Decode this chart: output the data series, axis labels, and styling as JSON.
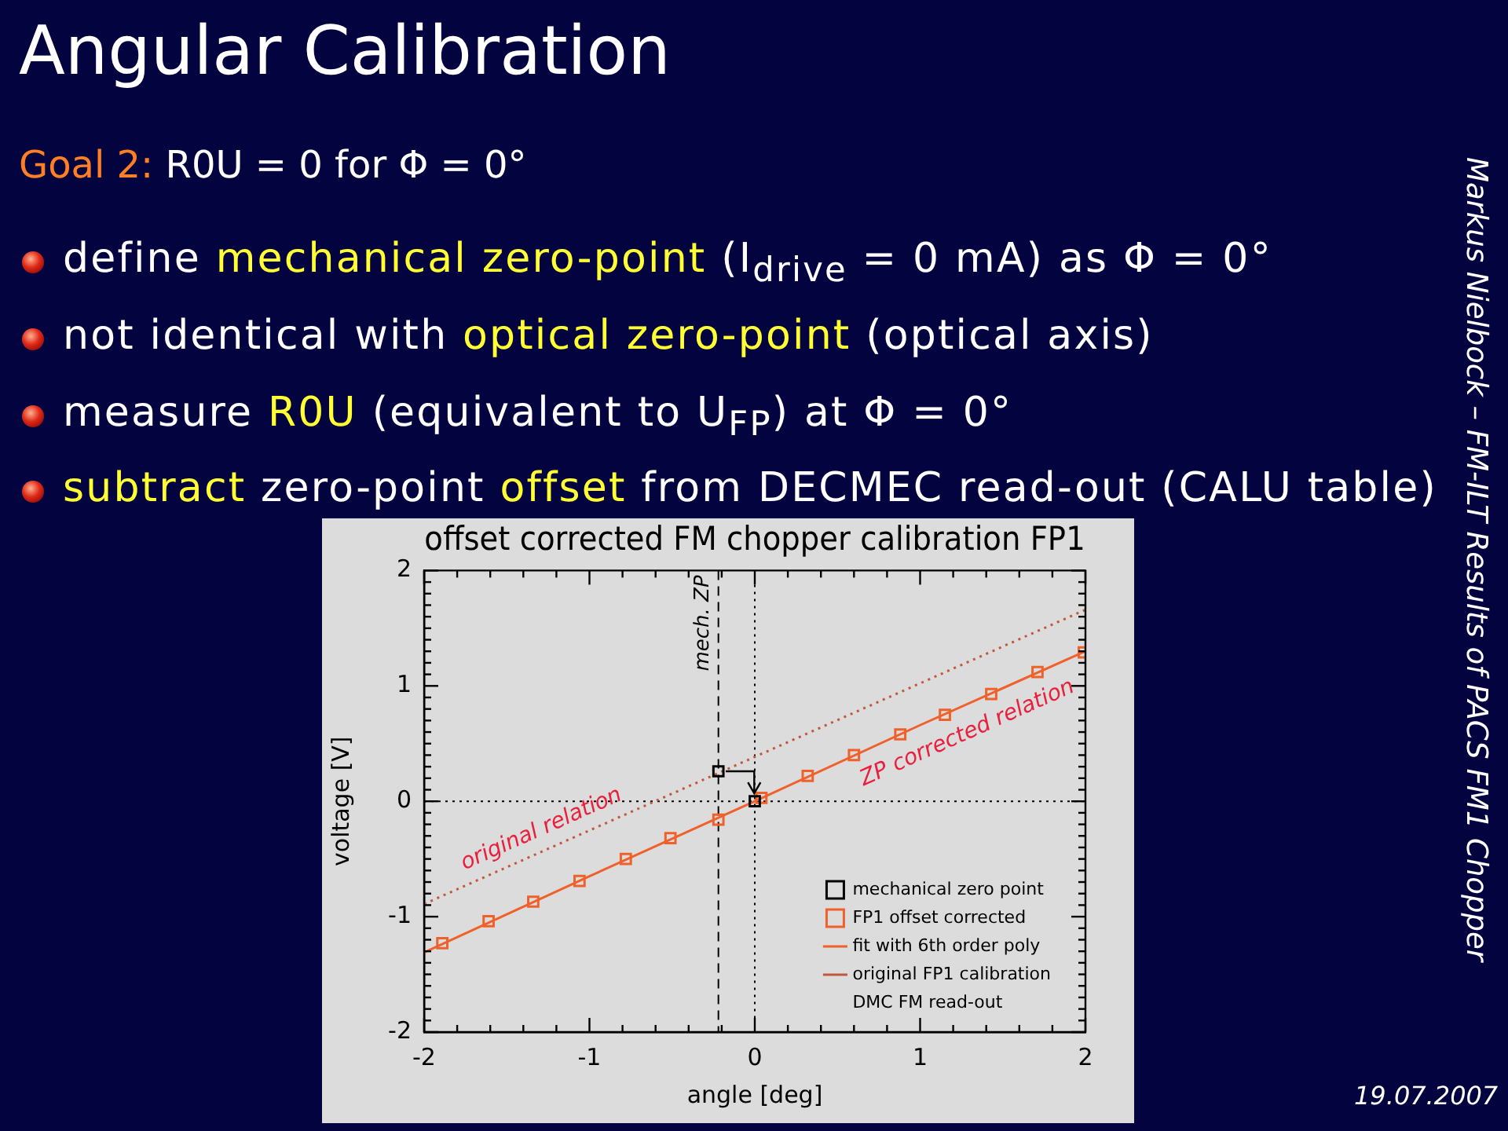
{
  "chart_data": {
    "type": "scatter",
    "title": "offset corrected FM chopper calibration FP1",
    "xlabel": "angle [deg]",
    "ylabel": "voltage [V]",
    "xlim": [
      -2,
      2
    ],
    "xticks": [
      -2,
      {
        "value": -1.8,
        "label": null
      },
      {
        "value": -1.6,
        "label": null
      },
      {
        "value": -1.4,
        "label": null
      },
      {
        "value": -1.2,
        "label": null
      },
      -1,
      {
        "value": -0.8,
        "label": null
      },
      {
        "value": -0.6,
        "label": null
      },
      {
        "value": -0.4,
        "label": null
      },
      {
        "value": -0.2,
        "label": null
      },
      0,
      {
        "value": 0.2,
        "label": null
      },
      {
        "value": 0.4,
        "label": null
      },
      {
        "value": 0.6,
        "label": null
      },
      {
        "value": 0.8,
        "label": null
      },
      1,
      {
        "value": 1.2,
        "label": null
      },
      {
        "value": 1.4,
        "label": null
      },
      {
        "value": 1.6,
        "label": null
      },
      {
        "value": 1.8,
        "label": null
      },
      2
    ],
    "ylim": [
      -2,
      2
    ],
    "yticks": [
      -2,
      {
        "value": -1.9,
        "label": null
      },
      {
        "value": -1.8,
        "label": null
      },
      {
        "value": -1.7,
        "label": null
      },
      {
        "value": -1.6,
        "label": null
      },
      {
        "value": -1.5,
        "label": null
      },
      {
        "value": -1.4,
        "label": null
      },
      {
        "value": -1.3,
        "label": null
      },
      {
        "value": -1.2,
        "label": null
      },
      {
        "value": -1.1,
        "label": null
      },
      -1,
      {
        "value": -0.9,
        "label": null
      },
      {
        "value": -0.8,
        "label": null
      },
      {
        "value": -0.7,
        "label": null
      },
      {
        "value": -0.6,
        "label": null
      },
      {
        "value": -0.5,
        "label": null
      },
      {
        "value": -0.4,
        "label": null
      },
      {
        "value": -0.3,
        "label": null
      },
      {
        "value": -0.2,
        "label": null
      },
      {
        "value": -0.1,
        "label": null
      },
      0,
      {
        "value": 0.1,
        "label": null
      },
      {
        "value": 0.2,
        "label": null
      },
      {
        "value": 0.3,
        "label": null
      },
      {
        "value": 0.4,
        "label": null
      },
      {
        "value": 0.5,
        "label": null
      },
      {
        "value": 0.6,
        "label": null
      },
      {
        "value": 0.7,
        "label": null
      },
      {
        "value": 0.8,
        "label": null
      },
      {
        "value": 0.9,
        "label": null
      },
      1,
      {
        "value": 1.1,
        "label": null
      },
      {
        "value": 1.2,
        "label": null
      },
      {
        "value": 1.3,
        "label": null
      },
      {
        "value": 1.4,
        "label": null
      },
      {
        "value": 1.5,
        "label": null
      },
      {
        "value": 1.6,
        "label": null
      },
      {
        "value": 1.7,
        "label": null
      },
      {
        "value": 1.8,
        "label": null
      },
      {
        "value": 1.9,
        "label": null
      },
      2
    ],
    "legend": "bottom right",
    "series": [
      {
        "name": "mechanical zero point",
        "color": "#000000",
        "marker": "square",
        "x": [
          -0.22,
          0
        ],
        "values": [
          0.26,
          0
        ]
      },
      {
        "name": "FP1 offset corrected",
        "color": "#f0602a",
        "marker": "square",
        "x": [
          -1.89,
          -1.61,
          -1.34,
          -1.06,
          -0.78,
          -0.51,
          -0.22,
          0.04,
          0.32,
          0.6,
          0.88,
          1.15,
          1.43,
          1.71,
          1.99
        ],
        "values": [
          -1.23,
          -1.04,
          -0.87,
          -0.69,
          -0.5,
          -0.32,
          -0.16,
          0.03,
          0.22,
          0.4,
          0.58,
          0.75,
          0.93,
          1.12,
          1.29
        ]
      },
      {
        "name": "fit with 6th order poly",
        "type": "line",
        "color": "#f0602a",
        "marker": "none",
        "line_style": "solid",
        "x": [
          -2,
          -1,
          0,
          1,
          2
        ],
        "values": [
          -1.31,
          -0.65,
          0,
          0.66,
          1.3
        ]
      },
      {
        "name": "original FP1 calibration",
        "type": "line",
        "color": "#c0583a",
        "marker": "none",
        "line_style": "dotted",
        "x": [
          -2,
          2
        ],
        "values": [
          -0.89,
          1.66
        ]
      }
    ],
    "ref_lines": [
      {
        "axis": "x",
        "value": -0.22,
        "label": "mech. ZP",
        "line_style": "dashed",
        "color": "#000000"
      },
      {
        "axis": "x",
        "value": 0,
        "line_style": "dotted",
        "color": "#000000"
      },
      {
        "axis": "y",
        "value": 0,
        "line_style": "dotted",
        "color": "#000000"
      }
    ],
    "annotations": [
      "Angular Calibration",
      "Goal 2:",
      "R0U = 0 for Φ = 0°",
      "define",
      "mechanical zero-point",
      "(I$_{drive}$ = 0 mA) as Φ = 0°",
      "not identical with",
      "optical zero-point",
      "(optical axis)",
      "measure",
      "R0U",
      "(equivalent to U$_{FP}$) at Φ = 0°",
      "subtract",
      "zero-point",
      "offset",
      "from DECMEC read-out (CALU table)",
      "Markus Nielbock – FM-ILT Results of PACS FM1 Chopper",
      "19.07.2007",
      "original relation",
      "ZP corrected relation",
      "DMC FM read-out"
    ]
  }
}
